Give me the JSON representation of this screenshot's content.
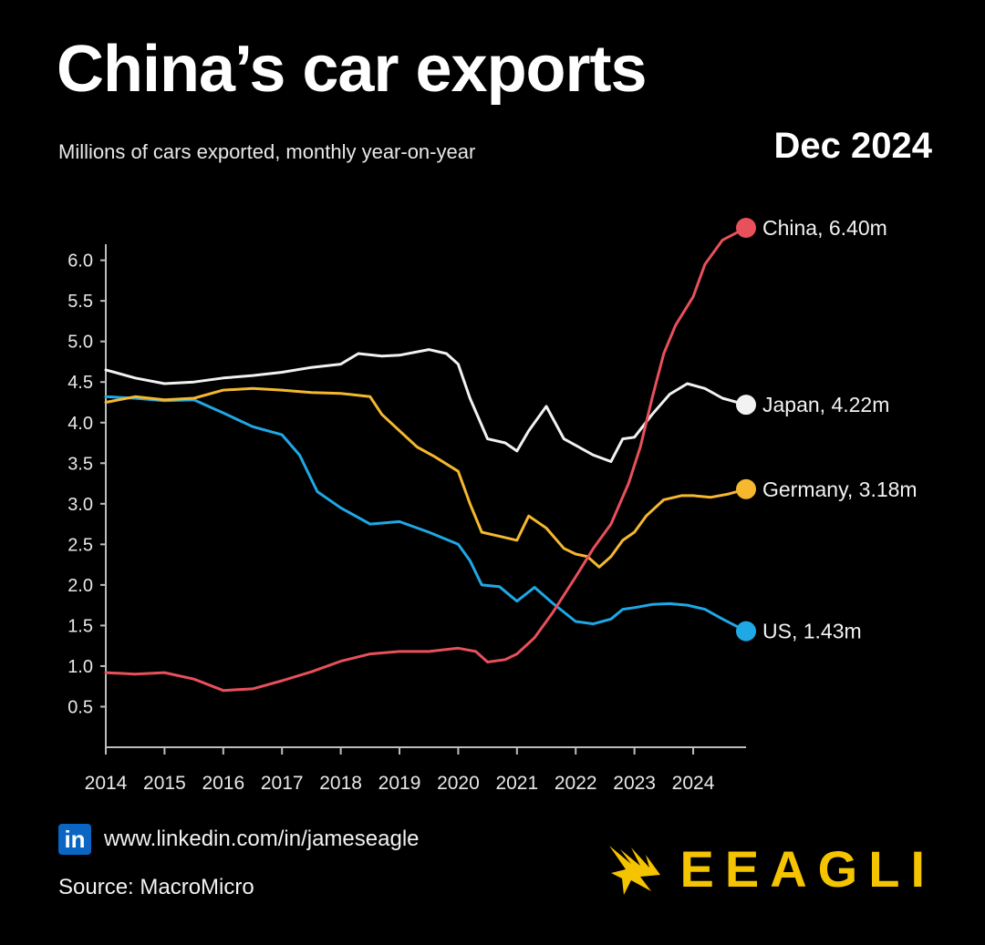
{
  "header": {
    "title": "China’s car exports",
    "subtitle": "Millions of cars exported, monthly year-on-year",
    "date": "Dec 2024"
  },
  "footer": {
    "linkedin_badge": "in",
    "link": "www.linkedin.com/in/jameseagle",
    "source": "Source: MacroMicro",
    "logo_text": "EEAGLI"
  },
  "colors": {
    "China": "#e8505b",
    "Japan": "#f2f2f2",
    "Germany": "#f5b82e",
    "US": "#1fa8e6",
    "axis": "#bdbdbd",
    "logo": "#f5c400"
  },
  "chart_data": {
    "type": "line",
    "title": "China’s car exports",
    "ylabel": "Millions of cars exported, monthly year-on-year",
    "xlim": [
      2014,
      2025
    ],
    "ylim": [
      0,
      6.4
    ],
    "yticks": [
      0.5,
      1.0,
      1.5,
      2.0,
      2.5,
      3.0,
      3.5,
      4.0,
      4.5,
      5.0,
      5.5,
      6.0
    ],
    "ytick_labels": [
      "0.5",
      "1.0",
      "1.5",
      "2.0",
      "2.5",
      "3.0",
      "3.5",
      "4.0",
      "4.5",
      "5.0",
      "5.5",
      "6.0"
    ],
    "xticks": [
      2014,
      2015,
      2016,
      2017,
      2018,
      2019,
      2020,
      2021,
      2022,
      2023,
      2024
    ],
    "xtick_labels": [
      "2014",
      "2015",
      "2016",
      "2017",
      "2018",
      "2019",
      "2020",
      "2021",
      "2022",
      "2023",
      "2024"
    ],
    "series": [
      {
        "name": "China",
        "end_label": "China, 6.40m",
        "points": [
          [
            2014,
            0.92
          ],
          [
            2014.5,
            0.9
          ],
          [
            2015,
            0.92
          ],
          [
            2015.5,
            0.84
          ],
          [
            2016,
            0.7
          ],
          [
            2016.5,
            0.72
          ],
          [
            2017,
            0.82
          ],
          [
            2017.5,
            0.93
          ],
          [
            2018,
            1.06
          ],
          [
            2018.5,
            1.15
          ],
          [
            2019,
            1.18
          ],
          [
            2019.5,
            1.18
          ],
          [
            2020,
            1.22
          ],
          [
            2020.3,
            1.18
          ],
          [
            2020.5,
            1.05
          ],
          [
            2020.8,
            1.08
          ],
          [
            2021,
            1.15
          ],
          [
            2021.3,
            1.35
          ],
          [
            2021.6,
            1.65
          ],
          [
            2022,
            2.1
          ],
          [
            2022.3,
            2.45
          ],
          [
            2022.6,
            2.75
          ],
          [
            2022.9,
            3.25
          ],
          [
            2023.1,
            3.7
          ],
          [
            2023.3,
            4.3
          ],
          [
            2023.5,
            4.85
          ],
          [
            2023.7,
            5.2
          ],
          [
            2024,
            5.55
          ],
          [
            2024.2,
            5.95
          ],
          [
            2024.5,
            6.25
          ],
          [
            2024.9,
            6.4
          ]
        ]
      },
      {
        "name": "Japan",
        "end_label": "Japan, 4.22m",
        "points": [
          [
            2014,
            4.65
          ],
          [
            2014.5,
            4.55
          ],
          [
            2015,
            4.48
          ],
          [
            2015.5,
            4.5
          ],
          [
            2016,
            4.55
          ],
          [
            2016.5,
            4.58
          ],
          [
            2017,
            4.62
          ],
          [
            2017.5,
            4.68
          ],
          [
            2018,
            4.72
          ],
          [
            2018.3,
            4.85
          ],
          [
            2018.7,
            4.82
          ],
          [
            2019,
            4.83
          ],
          [
            2019.5,
            4.9
          ],
          [
            2019.8,
            4.85
          ],
          [
            2020,
            4.72
          ],
          [
            2020.2,
            4.3
          ],
          [
            2020.5,
            3.8
          ],
          [
            2020.8,
            3.75
          ],
          [
            2021,
            3.65
          ],
          [
            2021.2,
            3.9
          ],
          [
            2021.5,
            4.2
          ],
          [
            2021.8,
            3.8
          ],
          [
            2022,
            3.72
          ],
          [
            2022.3,
            3.6
          ],
          [
            2022.6,
            3.52
          ],
          [
            2022.8,
            3.8
          ],
          [
            2023,
            3.82
          ],
          [
            2023.3,
            4.1
          ],
          [
            2023.6,
            4.35
          ],
          [
            2023.9,
            4.48
          ],
          [
            2024.2,
            4.42
          ],
          [
            2024.5,
            4.3
          ],
          [
            2024.9,
            4.22
          ]
        ]
      },
      {
        "name": "Germany",
        "end_label": "Germany, 3.18m",
        "points": [
          [
            2014,
            4.25
          ],
          [
            2014.5,
            4.32
          ],
          [
            2015,
            4.28
          ],
          [
            2015.5,
            4.3
          ],
          [
            2016,
            4.4
          ],
          [
            2016.5,
            4.42
          ],
          [
            2017,
            4.4
          ],
          [
            2017.5,
            4.37
          ],
          [
            2018,
            4.36
          ],
          [
            2018.5,
            4.32
          ],
          [
            2018.7,
            4.1
          ],
          [
            2019,
            3.9
          ],
          [
            2019.3,
            3.7
          ],
          [
            2019.6,
            3.58
          ],
          [
            2020,
            3.4
          ],
          [
            2020.2,
            3.0
          ],
          [
            2020.4,
            2.65
          ],
          [
            2020.7,
            2.6
          ],
          [
            2021,
            2.55
          ],
          [
            2021.2,
            2.85
          ],
          [
            2021.5,
            2.7
          ],
          [
            2021.8,
            2.45
          ],
          [
            2022,
            2.38
          ],
          [
            2022.2,
            2.35
          ],
          [
            2022.4,
            2.22
          ],
          [
            2022.6,
            2.35
          ],
          [
            2022.8,
            2.55
          ],
          [
            2023,
            2.65
          ],
          [
            2023.2,
            2.85
          ],
          [
            2023.5,
            3.05
          ],
          [
            2023.8,
            3.1
          ],
          [
            2024,
            3.1
          ],
          [
            2024.3,
            3.08
          ],
          [
            2024.6,
            3.12
          ],
          [
            2024.9,
            3.18
          ]
        ]
      },
      {
        "name": "US",
        "end_label": "US, 1.43m",
        "points": [
          [
            2014,
            4.32
          ],
          [
            2014.5,
            4.3
          ],
          [
            2015,
            4.27
          ],
          [
            2015.5,
            4.28
          ],
          [
            2016,
            4.12
          ],
          [
            2016.5,
            3.95
          ],
          [
            2017,
            3.85
          ],
          [
            2017.3,
            3.6
          ],
          [
            2017.6,
            3.15
          ],
          [
            2018,
            2.95
          ],
          [
            2018.5,
            2.75
          ],
          [
            2019,
            2.78
          ],
          [
            2019.5,
            2.65
          ],
          [
            2020,
            2.5
          ],
          [
            2020.2,
            2.3
          ],
          [
            2020.4,
            2.0
          ],
          [
            2020.7,
            1.98
          ],
          [
            2021,
            1.8
          ],
          [
            2021.3,
            1.97
          ],
          [
            2021.6,
            1.78
          ],
          [
            2022,
            1.55
          ],
          [
            2022.3,
            1.52
          ],
          [
            2022.6,
            1.58
          ],
          [
            2022.8,
            1.7
          ],
          [
            2023,
            1.72
          ],
          [
            2023.3,
            1.76
          ],
          [
            2023.6,
            1.77
          ],
          [
            2023.9,
            1.75
          ],
          [
            2024.2,
            1.7
          ],
          [
            2024.5,
            1.58
          ],
          [
            2024.9,
            1.43
          ]
        ]
      }
    ]
  }
}
